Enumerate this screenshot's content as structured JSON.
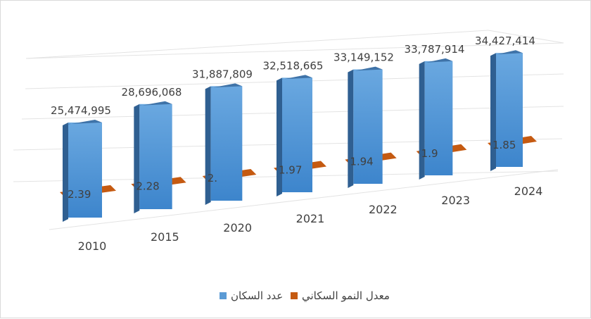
{
  "chart_data": {
    "type": "bar",
    "categories": [
      "2010",
      "2015",
      "2020",
      "2021",
      "2022",
      "2023",
      "2024"
    ],
    "series": [
      {
        "name": "عدد السكان",
        "color": "#5b9bd5",
        "values": [
          25474995,
          28696068,
          31887809,
          32518665,
          33149152,
          33787914,
          34427414
        ],
        "labels": [
          "25,474,995",
          "28,696,068",
          "31,887,809",
          "32,518,665",
          "33,149,152",
          "33,787,914",
          "34,427,414"
        ]
      },
      {
        "name": "معدل النمو السكاني",
        "color": "#c55a11",
        "values": [
          2.39,
          2.28,
          2.1,
          1.97,
          1.94,
          1.9,
          1.85
        ],
        "labels": [
          "2.39",
          "2.28",
          "2.",
          "1.97",
          "1.94",
          "1.9",
          "1.85"
        ]
      }
    ],
    "legend_position": "bottom",
    "grid": true
  }
}
